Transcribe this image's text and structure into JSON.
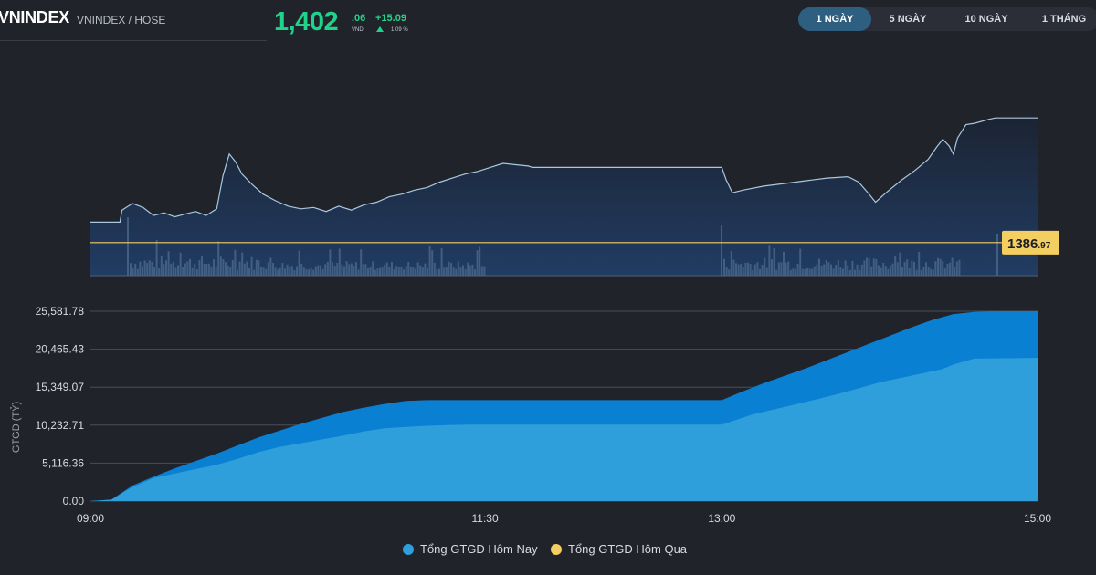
{
  "header": {
    "ticker": "VNINDEX",
    "exchange": "VNINDEX / HOSE",
    "price_int": "1,402",
    "price_dec": ".06",
    "currency": "VND",
    "change": "+15.09",
    "change_pct": "1.09 %"
  },
  "tabs": [
    {
      "label": "1 NGÀY",
      "active": true
    },
    {
      "label": "5 NGÀY",
      "active": false
    },
    {
      "label": "10 NGÀY",
      "active": false
    },
    {
      "label": "1 THÁNG",
      "active": false
    }
  ],
  "colors": {
    "up": "#20d38a",
    "price_line": "#a9c8e0",
    "reference_line": "#f2cf60",
    "today_fill": "#2f9fdc",
    "yesterday_fill": "#0a80d2",
    "volume_bar": "#4d6b8f"
  },
  "chart_data": [
    {
      "type": "line",
      "title": "",
      "x_range": [
        "09:00",
        "15:00"
      ],
      "reference": {
        "value": 1386.97,
        "label_main": "1386",
        "label_dec": ".97"
      },
      "series": [
        {
          "values": [
            [
              0,
              1388.5
            ],
            [
              14,
              1388.5
            ],
            [
              15,
              1389.4
            ],
            [
              20,
              1389.9
            ],
            [
              25,
              1389.6
            ],
            [
              30,
              1389.0
            ],
            [
              35,
              1389.2
            ],
            [
              40,
              1388.9
            ],
            [
              45,
              1389.1
            ],
            [
              50,
              1389.3
            ],
            [
              55,
              1389.0
            ],
            [
              60,
              1389.5
            ],
            [
              63,
              1392.0
            ],
            [
              66,
              1393.6
            ],
            [
              69,
              1393.0
            ],
            [
              72,
              1392.1
            ],
            [
              77,
              1391.3
            ],
            [
              82,
              1390.6
            ],
            [
              88,
              1390.1
            ],
            [
              94,
              1389.7
            ],
            [
              100,
              1389.5
            ],
            [
              106,
              1389.6
            ],
            [
              112,
              1389.3
            ],
            [
              118,
              1389.7
            ],
            [
              124,
              1389.4
            ],
            [
              130,
              1389.8
            ],
            [
              136,
              1390.0
            ],
            [
              142,
              1390.4
            ],
            [
              148,
              1390.6
            ],
            [
              154,
              1390.9
            ],
            [
              160,
              1391.1
            ],
            [
              166,
              1391.5
            ],
            [
              172,
              1391.8
            ],
            [
              178,
              1392.1
            ],
            [
              184,
              1392.3
            ],
            [
              190,
              1392.6
            ],
            [
              196,
              1392.9
            ],
            [
              202,
              1392.8
            ],
            [
              208,
              1392.7
            ],
            [
              210,
              1392.6
            ],
            [
              300,
              1392.6
            ],
            [
              302,
              1391.7
            ],
            [
              305,
              1390.7
            ],
            [
              310,
              1390.9
            ],
            [
              320,
              1391.2
            ],
            [
              330,
              1391.4
            ],
            [
              340,
              1391.6
            ],
            [
              350,
              1391.8
            ],
            [
              360,
              1391.9
            ],
            [
              365,
              1391.5
            ],
            [
              370,
              1390.6
            ],
            [
              373,
              1390.0
            ],
            [
              378,
              1390.7
            ],
            [
              385,
              1391.6
            ],
            [
              392,
              1392.4
            ],
            [
              398,
              1393.2
            ],
            [
              402,
              1394.1
            ],
            [
              405,
              1394.7
            ],
            [
              408,
              1394.2
            ],
            [
              410,
              1393.6
            ],
            [
              412,
              1394.8
            ],
            [
              416,
              1395.8
            ],
            [
              420,
              1395.9
            ],
            [
              427,
              1396.2
            ],
            [
              430,
              1396.3
            ],
            [
              435,
              1396.3
            ],
            [
              450,
              1396.3
            ]
          ]
        }
      ]
    },
    {
      "type": "area",
      "title": "",
      "ylabel": "GTGD (TỶ)",
      "yticks": [
        "25,581.78",
        "20,465.43",
        "15,349.07",
        "10,232.71",
        "5,116.36",
        "0.00"
      ],
      "ylim": [
        0,
        25581.78
      ],
      "xticks": [
        "09:00",
        "11:30",
        "13:00",
        "15:00"
      ],
      "series": [
        {
          "name": "Tổng GTGD Hôm Nay",
          "color": "#2f9fdc",
          "values": [
            [
              0,
              0
            ],
            [
              10,
              200
            ],
            [
              20,
              1900
            ],
            [
              30,
              3100
            ],
            [
              40,
              3700
            ],
            [
              50,
              4300
            ],
            [
              60,
              4900
            ],
            [
              70,
              5700
            ],
            [
              80,
              6600
            ],
            [
              90,
              7300
            ],
            [
              100,
              7800
            ],
            [
              110,
              8300
            ],
            [
              120,
              8800
            ],
            [
              130,
              9400
            ],
            [
              140,
              9800
            ],
            [
              150,
              10000
            ],
            [
              160,
              10150
            ],
            [
              170,
              10250
            ],
            [
              180,
              10300
            ],
            [
              210,
              10300
            ],
            [
              300,
              10300
            ],
            [
              315,
              11700
            ],
            [
              330,
              12700
            ],
            [
              345,
              13700
            ],
            [
              360,
              14800
            ],
            [
              375,
              16000
            ],
            [
              390,
              16900
            ],
            [
              405,
              17800
            ],
            [
              410,
              18400
            ],
            [
              420,
              19200
            ],
            [
              450,
              19300
            ]
          ]
        },
        {
          "name": "Tổng GTGD Hôm Qua",
          "color": "#0a80d2",
          "values": [
            [
              0,
              0
            ],
            [
              10,
              200
            ],
            [
              20,
              2100
            ],
            [
              30,
              3300
            ],
            [
              40,
              4400
            ],
            [
              50,
              5400
            ],
            [
              60,
              6400
            ],
            [
              70,
              7500
            ],
            [
              80,
              8600
            ],
            [
              90,
              9500
            ],
            [
              100,
              10400
            ],
            [
              110,
              11200
            ],
            [
              120,
              12000
            ],
            [
              130,
              12600
            ],
            [
              140,
              13100
            ],
            [
              150,
              13500
            ],
            [
              160,
              13600
            ],
            [
              180,
              13600
            ],
            [
              210,
              13600
            ],
            [
              300,
              13600
            ],
            [
              310,
              14800
            ],
            [
              320,
              15900
            ],
            [
              330,
              16900
            ],
            [
              340,
              17900
            ],
            [
              350,
              19000
            ],
            [
              360,
              20100
            ],
            [
              370,
              21200
            ],
            [
              380,
              22300
            ],
            [
              390,
              23400
            ],
            [
              400,
              24400
            ],
            [
              410,
              25200
            ],
            [
              420,
              25500
            ],
            [
              430,
              25581.78
            ],
            [
              450,
              25581.78
            ]
          ]
        }
      ]
    }
  ]
}
